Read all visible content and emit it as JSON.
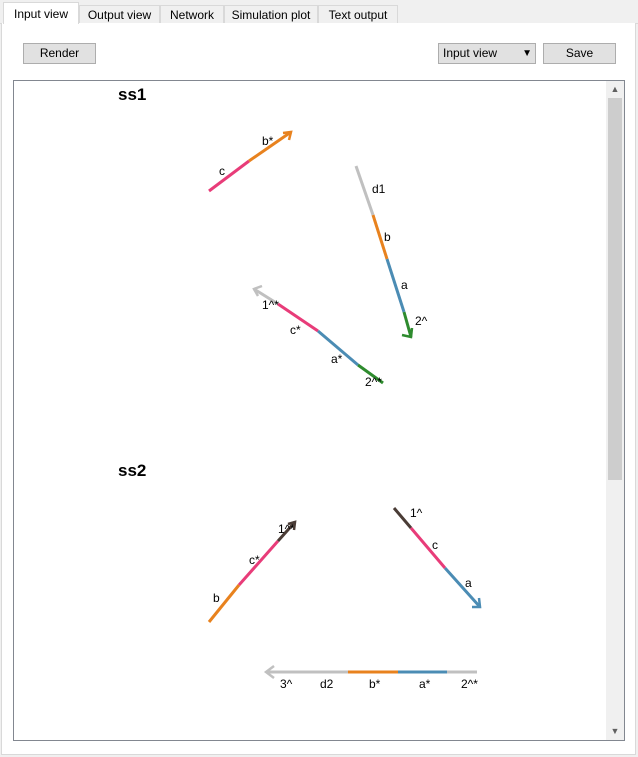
{
  "tabs": [
    {
      "label": "Input view",
      "active": true
    },
    {
      "label": "Output view",
      "active": false
    },
    {
      "label": "Network",
      "active": false
    },
    {
      "label": "Simulation plot",
      "active": false
    },
    {
      "label": "Text output",
      "active": false
    }
  ],
  "toolbar": {
    "render_label": "Render",
    "view_select": "Input view",
    "save_label": "Save"
  },
  "colors": {
    "gray": "#c0c0c0",
    "orange": "#e8821e",
    "pink": "#e83c79",
    "blue": "#4b8cb4",
    "green": "#2e8b2e",
    "dark": "#4a3c36"
  },
  "complexes": [
    {
      "name": "ss1",
      "strands": [
        {
          "domains": [
            {
              "label": "c",
              "color": "pink"
            },
            {
              "label": "b*",
              "color": "orange"
            }
          ]
        },
        {
          "domains": [
            {
              "label": "d1",
              "color": "gray"
            },
            {
              "label": "b",
              "color": "orange"
            },
            {
              "label": "a",
              "color": "blue"
            },
            {
              "label": "2^",
              "color": "green"
            }
          ]
        },
        {
          "domains": [
            {
              "label": "1^*",
              "color": "gray"
            },
            {
              "label": "c*",
              "color": "pink"
            },
            {
              "label": "a*",
              "color": "blue"
            },
            {
              "label": "2^*",
              "color": "green"
            }
          ]
        }
      ]
    },
    {
      "name": "ss2",
      "strands": [
        {
          "domains": [
            {
              "label": "b",
              "color": "orange"
            },
            {
              "label": "c*",
              "color": "pink"
            },
            {
              "label": "1^*",
              "color": "dark"
            }
          ]
        },
        {
          "domains": [
            {
              "label": "1^",
              "color": "dark"
            },
            {
              "label": "c",
              "color": "pink"
            },
            {
              "label": "a",
              "color": "blue"
            }
          ]
        },
        {
          "domains": [
            {
              "label": "3^",
              "color": "gray"
            },
            {
              "label": "d2",
              "color": "gray"
            },
            {
              "label": "b*",
              "color": "orange"
            },
            {
              "label": "a*",
              "color": "blue"
            },
            {
              "label": "2^*",
              "color": "gray"
            }
          ]
        }
      ]
    }
  ]
}
